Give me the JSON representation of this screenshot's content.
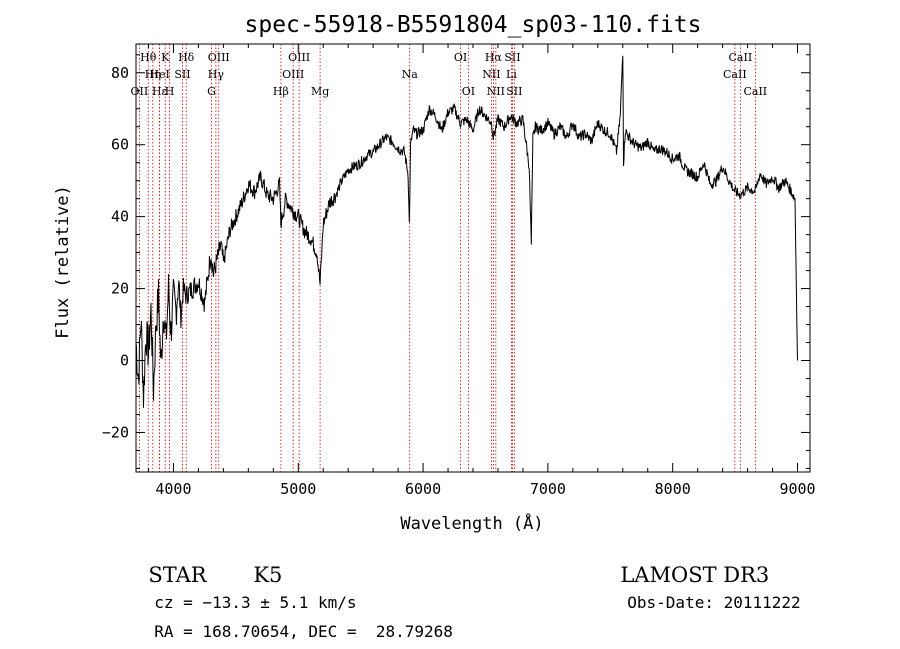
{
  "header": {
    "title": "spec-55918-B5591804_sp03-110.fits"
  },
  "footer": {
    "object_class": "STAR",
    "subclass": "K5",
    "survey": "LAMOST DR3",
    "redshift_text": "cz = −13.3 ± 5.1 km/s",
    "obs_date_text": "Obs-Date: 20111222",
    "coords_text": "RA = 168.70654, DEC =  28.79268"
  },
  "colors": {
    "spectrum": "#000000",
    "line_marker": "#c00000",
    "axis": "#000000"
  },
  "chart_data": {
    "type": "line",
    "title": "spec-55918-B5591804_sp03-110.fits",
    "xlabel": "Wavelength (Å)",
    "ylabel": "Flux (relative)",
    "xlim": [
      3700,
      9100
    ],
    "ylim": [
      -31,
      88
    ],
    "x_ticks": [
      4000,
      5000,
      6000,
      7000,
      8000,
      9000
    ],
    "y_ticks": [
      -20,
      0,
      20,
      40,
      60,
      80
    ],
    "grid": false,
    "series": [
      {
        "x": [
          3700,
          3720,
          3740,
          3760,
          3780,
          3800,
          3820,
          3840,
          3860,
          3880,
          3900,
          3920,
          3940,
          3960,
          3980,
          4000,
          4020,
          4040,
          4060,
          4080,
          4100,
          4150,
          4200,
          4250,
          4300,
          4320,
          4350,
          4380,
          4400,
          4450,
          4500,
          4550,
          4600,
          4650,
          4700,
          4750,
          4800,
          4850,
          4860,
          4900,
          4950,
          5000,
          5050,
          5100,
          5150,
          5175,
          5200,
          5250,
          5300,
          5350,
          5400,
          5450,
          5500,
          5550,
          5600,
          5650,
          5700,
          5750,
          5800,
          5850,
          5880,
          5890,
          5900,
          5920,
          5950,
          6000,
          6050,
          6100,
          6150,
          6200,
          6250,
          6300,
          6350,
          6400,
          6450,
          6500,
          6550,
          6563,
          6600,
          6650,
          6700,
          6750,
          6800,
          6850,
          6867,
          6880,
          6900,
          6950,
          7000,
          7050,
          7100,
          7150,
          7200,
          7250,
          7300,
          7350,
          7400,
          7450,
          7500,
          7550,
          7580,
          7600,
          7606,
          7620,
          7650,
          7700,
          7750,
          7800,
          7850,
          7900,
          7950,
          8000,
          8050,
          8100,
          8150,
          8200,
          8250,
          8300,
          8350,
          8400,
          8450,
          8498,
          8542,
          8600,
          8662,
          8700,
          8750,
          8800,
          8850,
          8900,
          8950,
          8980,
          9000
        ],
        "y": [
          5,
          -5,
          12,
          -10,
          8,
          2,
          14,
          -8,
          10,
          18,
          -2,
          15,
          5,
          20,
          8,
          17,
          14,
          22,
          12,
          20,
          18,
          20,
          22,
          16,
          30,
          24,
          28,
          32,
          27,
          36,
          40,
          44,
          49,
          47,
          51,
          46,
          45,
          49,
          38,
          45,
          42,
          40,
          36,
          34,
          30,
          21,
          38,
          44,
          46,
          50,
          53,
          54,
          55,
          57,
          58,
          60,
          62,
          61,
          59,
          58,
          52,
          38,
          60,
          64,
          63,
          64,
          70,
          68,
          64,
          69,
          70,
          66,
          67,
          64,
          70,
          68,
          66,
          62,
          67,
          65,
          68,
          66,
          67,
          54,
          32,
          62,
          65,
          64,
          66,
          63,
          65,
          62,
          66,
          62,
          63,
          61,
          66,
          64,
          63,
          58,
          68,
          86,
          55,
          64,
          62,
          60,
          59,
          61,
          58,
          59,
          58,
          56,
          57,
          53,
          52,
          51,
          55,
          49,
          50,
          54,
          50,
          47,
          46,
          48,
          47,
          52,
          49,
          51,
          48,
          50,
          47,
          45,
          0
        ]
      }
    ],
    "line_markers": [
      {
        "label": "Hθ",
        "x": 3798,
        "row": 1
      },
      {
        "label": "OII",
        "x": 3727,
        "row": 3
      },
      {
        "label": "Hη",
        "x": 3835,
        "row": 2
      },
      {
        "label": "Hε",
        "x": 3889,
        "row": 3
      },
      {
        "label": "K",
        "x": 3934,
        "row": 1
      },
      {
        "label": "HeI",
        "x": 3889,
        "row": 2
      },
      {
        "label": "H",
        "x": 3969,
        "row": 3
      },
      {
        "label": "SII",
        "x": 4072,
        "row": 2
      },
      {
        "label": "Hδ",
        "x": 4102,
        "row": 1
      },
      {
        "label": "OIII",
        "x": 4363,
        "row": 1
      },
      {
        "label": "Hγ",
        "x": 4340,
        "row": 2
      },
      {
        "label": "G",
        "x": 4305,
        "row": 3
      },
      {
        "label": "Hβ",
        "x": 4861,
        "row": 3
      },
      {
        "label": "OIII",
        "x": 5007,
        "row": 1
      },
      {
        "label": "OIII",
        "x": 4959,
        "row": 2
      },
      {
        "label": "Mg",
        "x": 5175,
        "row": 3
      },
      {
        "label": "Na",
        "x": 5893,
        "row": 2
      },
      {
        "label": "OI",
        "x": 6300,
        "row": 1
      },
      {
        "label": "OI",
        "x": 6363,
        "row": 3
      },
      {
        "label": "Hα",
        "x": 6563,
        "row": 1
      },
      {
        "label": "SII",
        "x": 6716,
        "row": 1
      },
      {
        "label": "NII",
        "x": 6548,
        "row": 2
      },
      {
        "label": "Li",
        "x": 6708,
        "row": 2
      },
      {
        "label": "NII",
        "x": 6583,
        "row": 3
      },
      {
        "label": "SII",
        "x": 6731,
        "row": 3
      },
      {
        "label": "CaII",
        "x": 8542,
        "row": 1
      },
      {
        "label": "CaII",
        "x": 8498,
        "row": 2
      },
      {
        "label": "CaII",
        "x": 8662,
        "row": 3
      }
    ]
  }
}
